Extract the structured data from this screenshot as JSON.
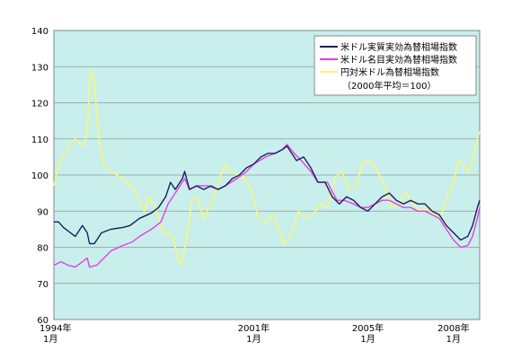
{
  "chart_data": {
    "type": "line",
    "title": "",
    "xlabel": "",
    "ylabel": "",
    "ylim": [
      60,
      140
    ],
    "yticks": [
      60,
      70,
      80,
      90,
      100,
      110,
      120,
      130,
      140
    ],
    "xlim": [
      "1994-01",
      "2008-12"
    ],
    "grid": true,
    "legend_position": "top-right",
    "xticks": [
      {
        "x": "1994-01",
        "year_label": "1994年",
        "month_label": "1月"
      },
      {
        "x": "2001-01",
        "year_label": "2001年",
        "month_label": "1月"
      },
      {
        "x": "2005-01",
        "year_label": "2005年",
        "month_label": "1月"
      },
      {
        "x": "2008-01",
        "year_label": "2008年",
        "month_label": "1月"
      }
    ],
    "legend_note": "（2000年平均＝100）",
    "colors": {
      "plot_bg": "#c9efec",
      "grid": "#8a9a9a",
      "real": "#1c1f5a",
      "nominal": "#e43ee4",
      "yen": "#f7f77a"
    },
    "series": [
      {
        "name": "米ドル実質実効為替相場指数",
        "color": "#1c1f5a",
        "points": [
          [
            "1994-01",
            87
          ],
          [
            "1994-03",
            87
          ],
          [
            "1994-05",
            85.5
          ],
          [
            "1994-08",
            84
          ],
          [
            "1994-10",
            83
          ],
          [
            "1995-01",
            86
          ],
          [
            "1995-03",
            84
          ],
          [
            "1995-04",
            81
          ],
          [
            "1995-06",
            81
          ],
          [
            "1995-09",
            84
          ],
          [
            "1996-01",
            85
          ],
          [
            "1996-06",
            85.5
          ],
          [
            "1996-09",
            86
          ],
          [
            "1997-01",
            88
          ],
          [
            "1997-06",
            89.5
          ],
          [
            "1997-09",
            91
          ],
          [
            "1997-12",
            94
          ],
          [
            "1998-02",
            98
          ],
          [
            "1998-04",
            96
          ],
          [
            "1998-07",
            99
          ],
          [
            "1998-08",
            101
          ],
          [
            "1998-10",
            96
          ],
          [
            "1999-01",
            97
          ],
          [
            "1999-04",
            96
          ],
          [
            "1999-07",
            97
          ],
          [
            "1999-10",
            96
          ],
          [
            "2000-01",
            97
          ],
          [
            "2000-04",
            99
          ],
          [
            "2000-07",
            100
          ],
          [
            "2000-10",
            102
          ],
          [
            "2001-01",
            103
          ],
          [
            "2001-04",
            105
          ],
          [
            "2001-07",
            106
          ],
          [
            "2001-10",
            106
          ],
          [
            "2002-01",
            107
          ],
          [
            "2002-03",
            108
          ],
          [
            "2002-05",
            106
          ],
          [
            "2002-07",
            104
          ],
          [
            "2002-10",
            105
          ],
          [
            "2003-01",
            102
          ],
          [
            "2003-04",
            98
          ],
          [
            "2003-07",
            98
          ],
          [
            "2003-10",
            94
          ],
          [
            "2004-01",
            92
          ],
          [
            "2004-04",
            94
          ],
          [
            "2004-07",
            93
          ],
          [
            "2004-10",
            91
          ],
          [
            "2005-01",
            90
          ],
          [
            "2005-04",
            92
          ],
          [
            "2005-07",
            94
          ],
          [
            "2005-10",
            95
          ],
          [
            "2006-01",
            93
          ],
          [
            "2006-04",
            92
          ],
          [
            "2006-07",
            93
          ],
          [
            "2006-10",
            92
          ],
          [
            "2007-01",
            92
          ],
          [
            "2007-04",
            90
          ],
          [
            "2007-07",
            89
          ],
          [
            "2007-10",
            86
          ],
          [
            "2008-01",
            84
          ],
          [
            "2008-04",
            82
          ],
          [
            "2008-07",
            83
          ],
          [
            "2008-09",
            86
          ],
          [
            "2008-11",
            91
          ],
          [
            "2008-12",
            93
          ]
        ]
      },
      {
        "name": "米ドル名目実効為替相場指数",
        "color": "#e43ee4",
        "points": [
          [
            "1994-01",
            75
          ],
          [
            "1994-04",
            76
          ],
          [
            "1994-07",
            75
          ],
          [
            "1994-10",
            74.5
          ],
          [
            "1995-01",
            76
          ],
          [
            "1995-03",
            77
          ],
          [
            "1995-04",
            74.5
          ],
          [
            "1995-07",
            75
          ],
          [
            "1995-10",
            77
          ],
          [
            "1996-01",
            79
          ],
          [
            "1996-06",
            80.5
          ],
          [
            "1996-10",
            81.5
          ],
          [
            "1997-01",
            83
          ],
          [
            "1997-06",
            85
          ],
          [
            "1997-10",
            87
          ],
          [
            "1998-01",
            92
          ],
          [
            "1998-04",
            95
          ],
          [
            "1998-08",
            99
          ],
          [
            "1998-10",
            96
          ],
          [
            "1999-01",
            97
          ],
          [
            "1999-06",
            97
          ],
          [
            "1999-10",
            96
          ],
          [
            "2000-01",
            97
          ],
          [
            "2000-06",
            99
          ],
          [
            "2000-10",
            101
          ],
          [
            "2001-01",
            103
          ],
          [
            "2001-06",
            105
          ],
          [
            "2001-10",
            106
          ],
          [
            "2002-01",
            107
          ],
          [
            "2002-03",
            108.5
          ],
          [
            "2002-06",
            106
          ],
          [
            "2002-09",
            104
          ],
          [
            "2003-01",
            101
          ],
          [
            "2003-04",
            98
          ],
          [
            "2003-08",
            98
          ],
          [
            "2003-12",
            93
          ],
          [
            "2004-03",
            93
          ],
          [
            "2004-07",
            92
          ],
          [
            "2004-10",
            91
          ],
          [
            "2005-01",
            91
          ],
          [
            "2005-04",
            92
          ],
          [
            "2005-07",
            93
          ],
          [
            "2005-10",
            93
          ],
          [
            "2006-01",
            92
          ],
          [
            "2006-04",
            91
          ],
          [
            "2006-07",
            91
          ],
          [
            "2006-10",
            90
          ],
          [
            "2007-01",
            90
          ],
          [
            "2007-04",
            89
          ],
          [
            "2007-07",
            88
          ],
          [
            "2007-10",
            85
          ],
          [
            "2008-01",
            82
          ],
          [
            "2008-04",
            80
          ],
          [
            "2008-07",
            80.5
          ],
          [
            "2008-09",
            83
          ],
          [
            "2008-11",
            88
          ],
          [
            "2008-12",
            91
          ]
        ]
      },
      {
        "name": "円対米ドル為替相場指数",
        "color": "#f7f77a",
        "points": [
          [
            "1994-01",
            97
          ],
          [
            "1994-03",
            103
          ],
          [
            "1994-05",
            105
          ],
          [
            "1994-08",
            109
          ],
          [
            "1994-10",
            110
          ],
          [
            "1995-01",
            108
          ],
          [
            "1995-03",
            111
          ],
          [
            "1995-04",
            126
          ],
          [
            "1995-05",
            129
          ],
          [
            "1995-06",
            125
          ],
          [
            "1995-08",
            110
          ],
          [
            "1995-10",
            103
          ],
          [
            "1996-01",
            101
          ],
          [
            "1996-06",
            99
          ],
          [
            "1996-10",
            97
          ],
          [
            "1997-01",
            93
          ],
          [
            "1997-03",
            90
          ],
          [
            "1997-05",
            94
          ],
          [
            "1997-07",
            92
          ],
          [
            "1997-09",
            88
          ],
          [
            "1997-11",
            84
          ],
          [
            "1998-01",
            84
          ],
          [
            "1998-03",
            83
          ],
          [
            "1998-05",
            77
          ],
          [
            "1998-07",
            75
          ],
          [
            "1998-09",
            84
          ],
          [
            "1998-11",
            93
          ],
          [
            "1999-01",
            94
          ],
          [
            "1999-04",
            88
          ],
          [
            "1999-07",
            92
          ],
          [
            "1999-10",
            98
          ],
          [
            "2000-01",
            103
          ],
          [
            "2000-03",
            101
          ],
          [
            "2000-06",
            100
          ],
          [
            "2000-09",
            99
          ],
          [
            "2000-12",
            96
          ],
          [
            "2001-03",
            88
          ],
          [
            "2001-06",
            87
          ],
          [
            "2001-09",
            89
          ],
          [
            "2001-12",
            84
          ],
          [
            "2002-02",
            81
          ],
          [
            "2002-05",
            84
          ],
          [
            "2002-08",
            90
          ],
          [
            "2002-11",
            88
          ],
          [
            "2003-02",
            89
          ],
          [
            "2003-05",
            92
          ],
          [
            "2003-08",
            91
          ],
          [
            "2003-11",
            99
          ],
          [
            "2004-02",
            101
          ],
          [
            "2004-05",
            96
          ],
          [
            "2004-08",
            97
          ],
          [
            "2004-11",
            104
          ],
          [
            "2005-02",
            104
          ],
          [
            "2005-05",
            101
          ],
          [
            "2005-08",
            97
          ],
          [
            "2005-11",
            91
          ],
          [
            "2006-02",
            92
          ],
          [
            "2006-05",
            95
          ],
          [
            "2006-08",
            92
          ],
          [
            "2006-11",
            90
          ],
          [
            "2007-02",
            91
          ],
          [
            "2007-05",
            89
          ],
          [
            "2007-07",
            88
          ],
          [
            "2007-09",
            91
          ],
          [
            "2007-11",
            95
          ],
          [
            "2008-01",
            98
          ],
          [
            "2008-03",
            104
          ],
          [
            "2008-05",
            103
          ],
          [
            "2008-07",
            101
          ],
          [
            "2008-09",
            104
          ],
          [
            "2008-11",
            110
          ],
          [
            "2008-12",
            112
          ]
        ]
      }
    ]
  }
}
